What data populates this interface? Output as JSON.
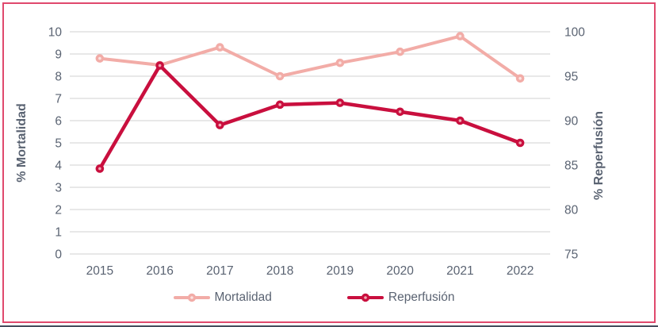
{
  "chart_data": {
    "type": "line",
    "categories": [
      "2015",
      "2016",
      "2017",
      "2018",
      "2019",
      "2020",
      "2021",
      "2022"
    ],
    "series": [
      {
        "name": "Mortalidad",
        "axis": "left",
        "color": "#f2aca7",
        "marker_center": "#fbe3e1",
        "line_width": 4,
        "values": [
          8.8,
          8.5,
          9.3,
          8.0,
          8.6,
          9.1,
          9.8,
          7.9
        ]
      },
      {
        "name": "Reperfusión",
        "axis": "right",
        "color": "#c90f3e",
        "marker_center": "#f2a9b4",
        "line_width": 4.5,
        "values": [
          84.6,
          96.2,
          89.5,
          91.8,
          92,
          91,
          90,
          87.5
        ]
      }
    ],
    "left_axis": {
      "label": "% Mortalidad",
      "min": 0,
      "max": 10,
      "ticks": [
        0,
        1,
        2,
        3,
        4,
        5,
        6,
        7,
        8,
        9,
        10
      ]
    },
    "right_axis": {
      "label": "% Reperfusión",
      "min": 75,
      "max": 100,
      "ticks": [
        75,
        80,
        85,
        90,
        95,
        100
      ]
    },
    "grid": "horizontal",
    "gridline_color": "#d9d9d9",
    "text_color": "#5a6372",
    "border_color": "#e0496d",
    "legend_position": "bottom"
  },
  "legend": {
    "items": [
      {
        "label": "Mortalidad"
      },
      {
        "label": "Reperfusión"
      }
    ]
  }
}
